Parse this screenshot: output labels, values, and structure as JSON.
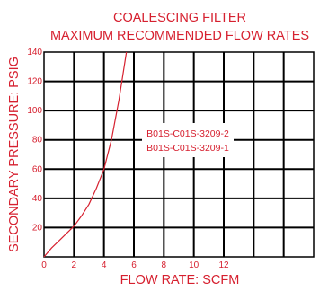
{
  "chart_data": {
    "type": "line",
    "title": "COALESCING FILTER",
    "subtitle": "MAXIMUM RECOMMENDED FLOW RATES",
    "xlabel": "FLOW RATE: SCFM",
    "ylabel": "SECONDARY PRESSURE: PSIG",
    "xlim": [
      0,
      18
    ],
    "ylim": [
      0,
      140
    ],
    "x_ticks": [
      "0",
      "2",
      "4",
      "6",
      "8",
      "10",
      "12"
    ],
    "y_ticks": [
      "20",
      "40",
      "60",
      "80",
      "100",
      "120",
      "140"
    ],
    "grid": true,
    "legend_position": "center-right",
    "legend_labels": [
      "B01S-C01S-3209-2",
      "B01S-C01S-3209-1"
    ],
    "series": [
      {
        "x": [
          0,
          0.5,
          1,
          1.5,
          2,
          2.5,
          3,
          3.5,
          4,
          4.5,
          5,
          5.5
        ],
        "y": [
          0,
          6,
          11,
          16,
          21,
          28,
          36,
          47,
          60,
          80,
          107,
          140
        ]
      }
    ],
    "colors": {
      "text": "#d6202f",
      "curve": "#d6202f",
      "grid": "#000000"
    }
  }
}
